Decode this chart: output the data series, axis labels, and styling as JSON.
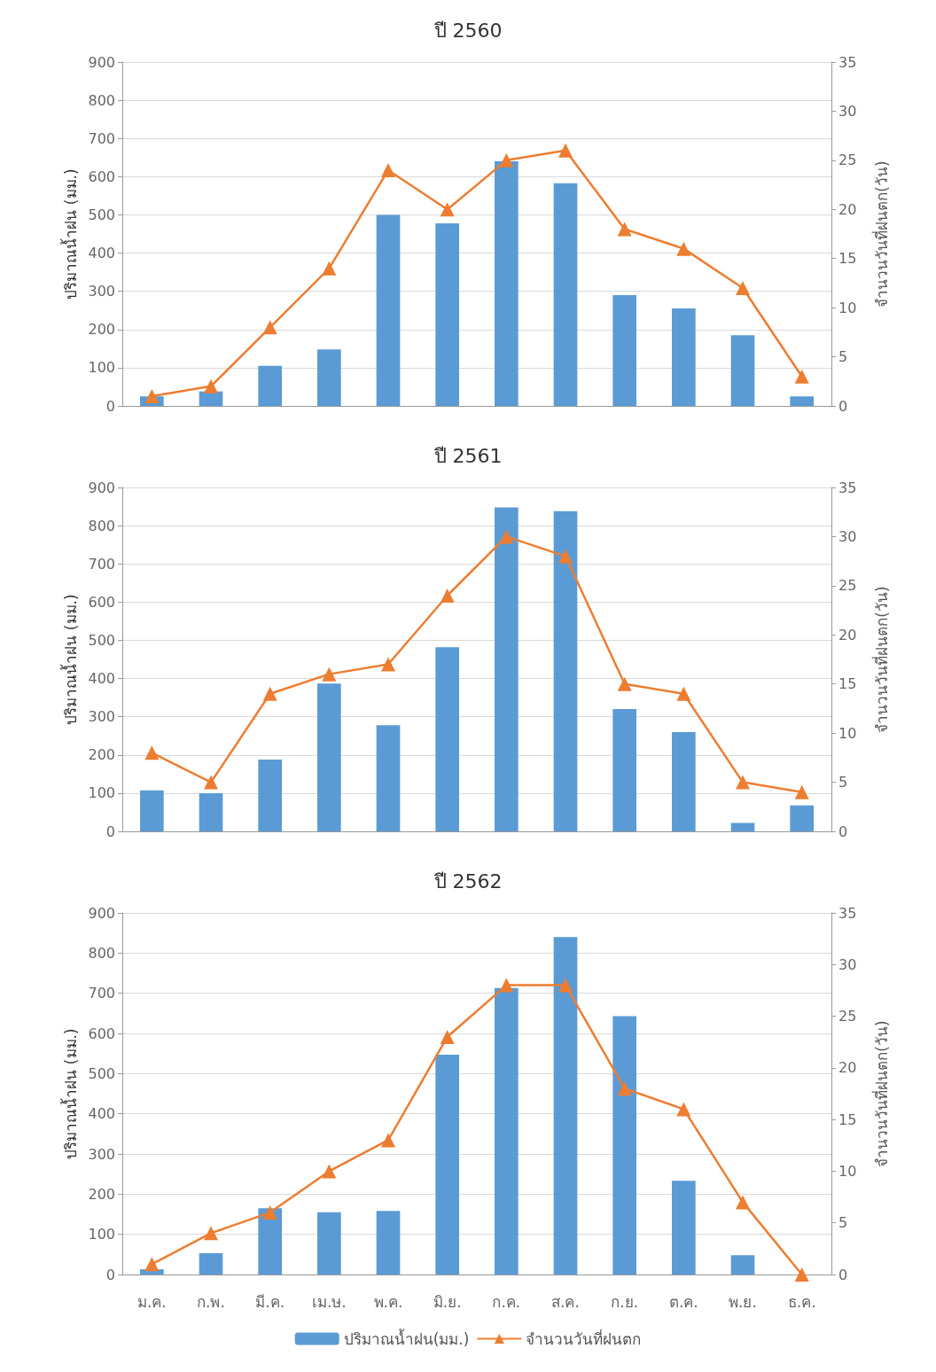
{
  "chart_data": [
    {
      "type": "bar",
      "title": "ปี 2560",
      "ylabel": "ปริมาณน้ำฝน (มม.)",
      "y2label": "จำนวนวันที่ฝนตก(วัน)",
      "categories": [
        null,
        null,
        null,
        null,
        null,
        null,
        null,
        null,
        null,
        null,
        null,
        null
      ],
      "tick_labels": "y",
      "grid": "y",
      "legend": false,
      "marker": "triangle",
      "ylim": [
        0,
        900
      ],
      "yticks": [
        0,
        100,
        200,
        300,
        400,
        500,
        600,
        700,
        800,
        900
      ],
      "y2lim": [
        0,
        35
      ],
      "y2ticks": [
        0,
        5,
        10,
        15,
        20,
        25,
        30,
        35
      ],
      "series": [
        {
          "color": "#5b9bd5",
          "values": [
            25,
            38,
            105,
            148,
            500,
            478,
            640,
            583,
            290,
            255,
            185,
            25
          ]
        },
        {
          "type": "line",
          "axis": "y2",
          "color": "#ed7d31",
          "values": [
            1,
            2,
            8,
            14,
            24,
            20,
            25,
            26,
            18,
            16,
            12,
            3
          ]
        }
      ]
    },
    {
      "type": "bar",
      "title": "ปี 2561",
      "ylabel": "ปริมาณน้ำฝน (มม.)",
      "y2label": "จำนวนวันที่ฝนตก(วัน)",
      "categories": [
        null,
        null,
        null,
        null,
        null,
        null,
        null,
        null,
        null,
        null,
        null,
        null
      ],
      "tick_labels": "y",
      "grid": "y",
      "legend": false,
      "marker": "triangle",
      "ylim": [
        0,
        900
      ],
      "yticks": [
        0,
        100,
        200,
        300,
        400,
        500,
        600,
        700,
        800,
        900
      ],
      "y2lim": [
        0,
        35
      ],
      "y2ticks": [
        0,
        5,
        10,
        15,
        20,
        25,
        30,
        35
      ],
      "series": [
        {
          "color": "#5b9bd5",
          "values": [
            107,
            100,
            188,
            387,
            278,
            482,
            848,
            838,
            320,
            260,
            22,
            68
          ]
        },
        {
          "type": "line",
          "axis": "y2",
          "color": "#ed7d31",
          "values": [
            8,
            5,
            14,
            16,
            17,
            24,
            30,
            28,
            15,
            14,
            5,
            4
          ]
        }
      ]
    },
    {
      "type": "bar",
      "title": "ปี 2562",
      "ylabel": "ปริมาณน้ำฝน (มม.)",
      "y2label": "จำนวนวันที่ฝนตก(วัน)",
      "categories": [
        "ม.ค.",
        "ก.พ.",
        "มี.ค.",
        "เม.ษ.",
        "พ.ค.",
        "มิ.ย.",
        "ก.ค.",
        "ส.ค.",
        "ก.ย.",
        "ต.ค.",
        "พ.ย.",
        "ธ.ค."
      ],
      "grid": "y",
      "legend": "bottom",
      "marker": "triangle",
      "ylim": [
        0,
        900
      ],
      "yticks": [
        0,
        100,
        200,
        300,
        400,
        500,
        600,
        700,
        800,
        900
      ],
      "y2lim": [
        0,
        35
      ],
      "y2ticks": [
        0,
        5,
        10,
        15,
        20,
        25,
        30,
        35
      ],
      "series": [
        {
          "name": "ปริมาณน้ำฝน(มม.)",
          "color": "#5b9bd5",
          "values": [
            13,
            53,
            165,
            155,
            158,
            547,
            713,
            840,
            643,
            233,
            48,
            0
          ]
        },
        {
          "type": "line",
          "name": "จำนวนวันที่ฝนตก",
          "axis": "y2",
          "color": "#ed7d31",
          "values": [
            1,
            4,
            6,
            10,
            13,
            23,
            28,
            28,
            18,
            16,
            7,
            0
          ]
        }
      ]
    }
  ]
}
